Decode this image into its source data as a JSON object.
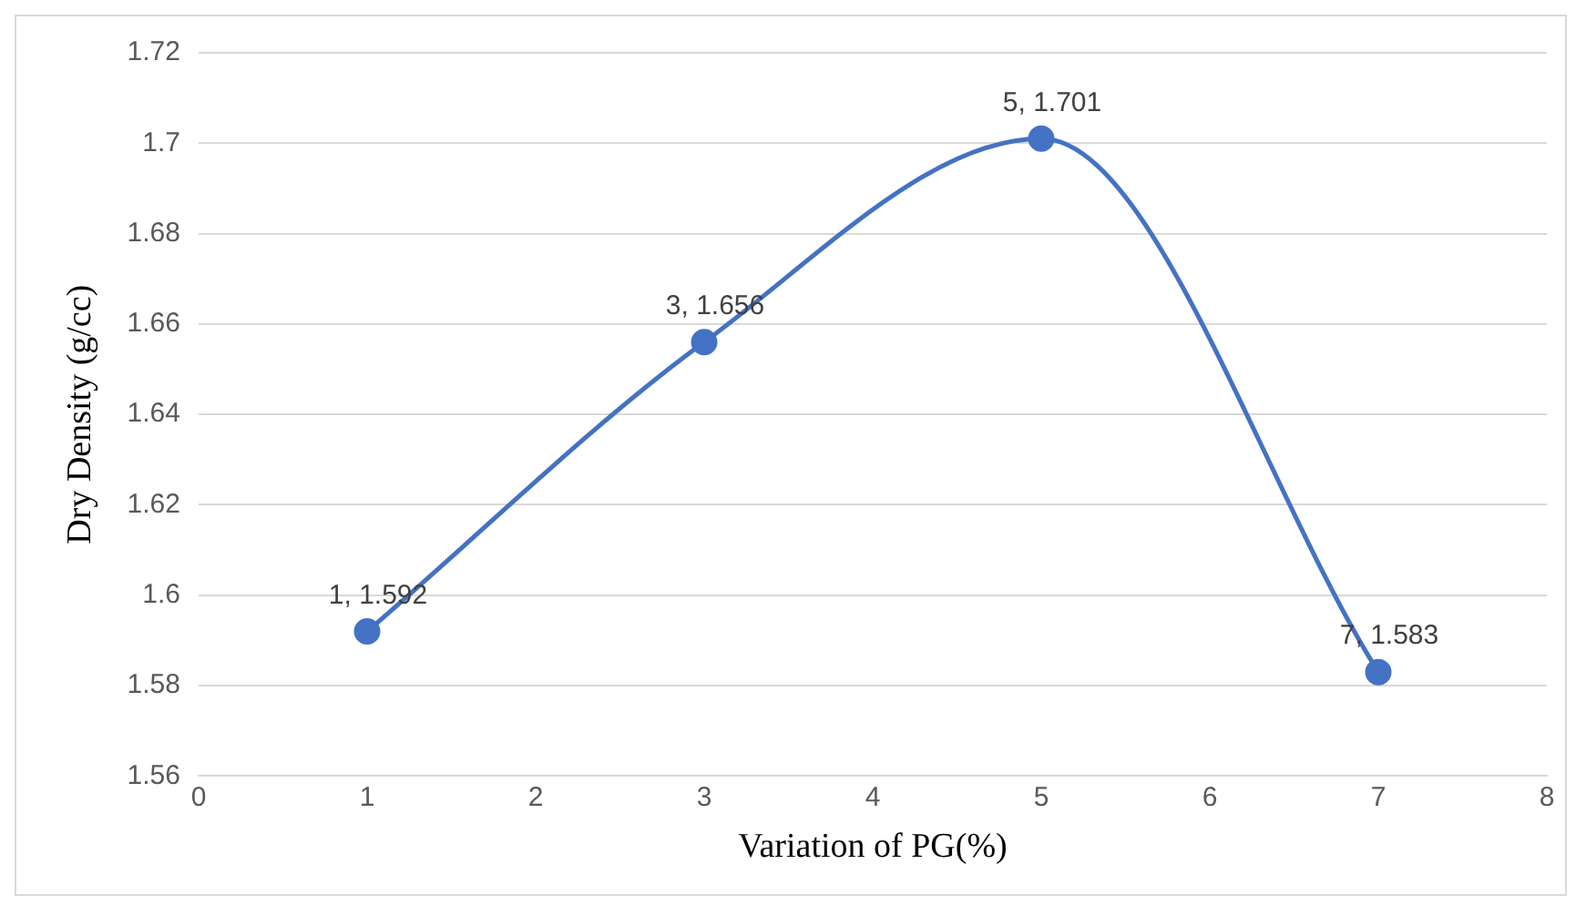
{
  "chart_data": {
    "type": "line",
    "xlabel": "Variation of PG(%)",
    "ylabel": "Dry Density (g/cc)",
    "x": [
      1,
      3,
      5,
      7
    ],
    "series": [
      {
        "color": "#4472c4",
        "values": [
          1.592,
          1.656,
          1.701,
          1.583
        ],
        "value_labels": [
          "1, 1.592",
          "3, 1.656",
          "5, 1.701",
          "7, 1.583"
        ]
      }
    ],
    "xlim": [
      0,
      8
    ],
    "xticks": [
      0,
      1,
      2,
      3,
      4,
      5,
      6,
      7,
      8
    ],
    "ylim": [
      1.56,
      1.72
    ],
    "yticks": [
      1.56,
      1.58,
      1.6,
      1.62,
      1.64,
      1.66,
      1.68,
      1.7,
      1.72
    ],
    "grid": "y",
    "legend": false,
    "marker": "circle",
    "line_style": "solid"
  }
}
